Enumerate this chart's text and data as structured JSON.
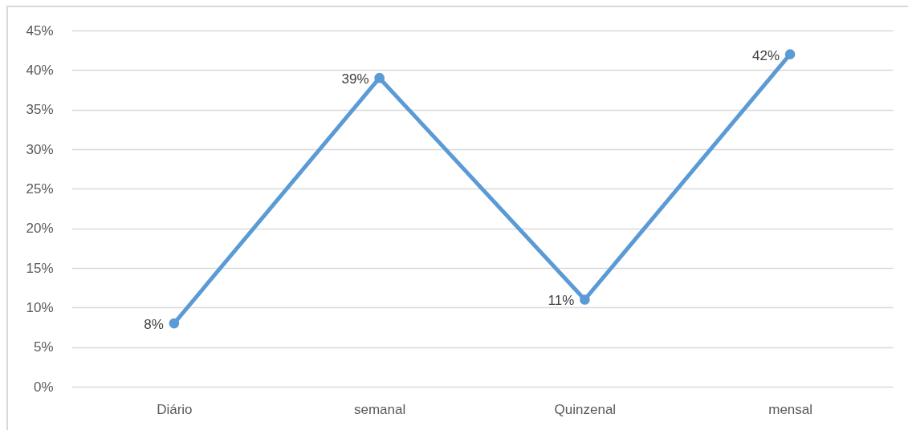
{
  "chart_data": {
    "type": "line",
    "categories": [
      "Diário",
      "semanal",
      "Quinzenal",
      "mensal"
    ],
    "series": [
      {
        "color": "#5b9bd5",
        "values": [
          8,
          39,
          11,
          42
        ],
        "value_labels": [
          "8%",
          "39%",
          "11%",
          "42%"
        ]
      }
    ],
    "ylim": [
      0,
      45
    ],
    "yticks": [
      {
        "value": 0,
        "label": "0%"
      },
      {
        "value": 5,
        "label": "5%"
      },
      {
        "value": 10,
        "label": "10%"
      },
      {
        "value": 15,
        "label": "15%"
      },
      {
        "value": 20,
        "label": "20%"
      },
      {
        "value": 25,
        "label": "25%"
      },
      {
        "value": 30,
        "label": "30%"
      },
      {
        "value": 35,
        "label": "35%"
      },
      {
        "value": 40,
        "label": "40%"
      },
      {
        "value": 45,
        "label": "45%"
      }
    ],
    "grid": "y",
    "marker": "circle",
    "line_style": "solid"
  }
}
